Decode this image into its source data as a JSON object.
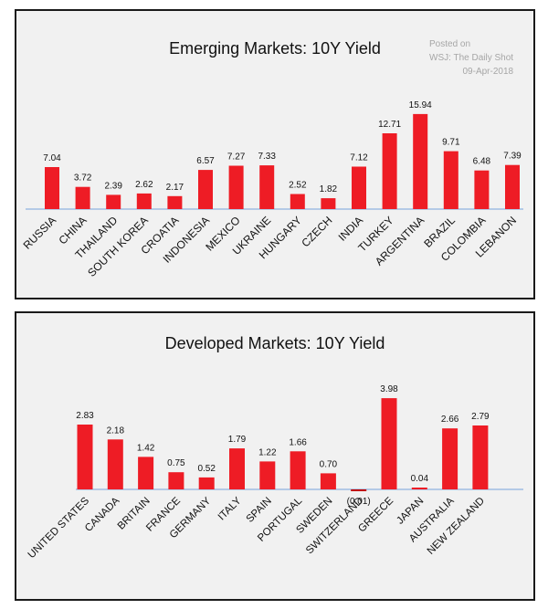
{
  "chart_data": [
    {
      "type": "bar",
      "title": "Emerging Markets: 10Y Yield",
      "categories": [
        "RUSSIA",
        "CHINA",
        "THAILAND",
        "SOUTH KOREA",
        "CROATIA",
        "INDONESIA",
        "MEXICO",
        "UKRAINE",
        "HUNGARY",
        "CZECH",
        "INDIA",
        "TURKEY",
        "ARGENTINA",
        "BRAZIL",
        "COLOMBIA",
        "LEBANON"
      ],
      "values": [
        7.04,
        3.72,
        2.39,
        2.62,
        2.17,
        6.57,
        7.27,
        7.33,
        2.52,
        1.82,
        7.12,
        12.71,
        15.94,
        9.71,
        6.48,
        7.39
      ],
      "value_labels": [
        "7.04",
        "3.72",
        "2.39",
        "2.62",
        "2.17",
        "6.57",
        "7.27",
        "7.33",
        "2.52",
        "1.82",
        "7.12",
        "12.71",
        "15.94",
        "9.71",
        "6.48",
        "7.39"
      ],
      "bar_color": "#ee1c25",
      "xlabel": "",
      "ylabel": "",
      "grid": false,
      "legend": "none",
      "watermark": [
        "Posted on",
        "WSJ: The Daily Shot",
        "09-Apr-2018"
      ]
    },
    {
      "type": "bar",
      "title": "Developed Markets: 10Y Yield",
      "categories": [
        "UNITED STATES",
        "CANADA",
        "BRITAIN",
        "FRANCE",
        "GERMANY",
        "ITALY",
        "SPAIN",
        "PORTUGAL",
        "SWEDEN",
        "SWITZERLAND",
        "GREECE",
        "JAPAN",
        "AUSTRALIA",
        "NEW ZEALAND"
      ],
      "values": [
        2.83,
        2.18,
        1.42,
        0.75,
        0.52,
        1.79,
        1.22,
        1.66,
        0.7,
        -0.01,
        3.98,
        0.04,
        2.66,
        2.79
      ],
      "value_labels": [
        "2.83",
        "2.18",
        "1.42",
        "0.75",
        "0.52",
        "1.79",
        "1.22",
        "1.66",
        "0.70",
        "(0.01)",
        "3.98",
        "0.04",
        "2.66",
        "2.79"
      ],
      "bar_color": "#ee1c25",
      "xlabel": "",
      "ylabel": "",
      "grid": false,
      "legend": "none"
    }
  ]
}
